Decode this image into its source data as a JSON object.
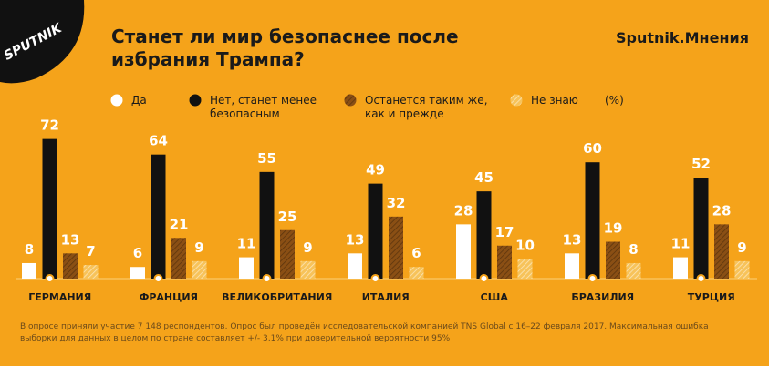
{
  "brand": "SPUTNIK",
  "chart_data": {
    "type": "bar",
    "title": "Станет ли мир безопаснее после избрания Трампа?",
    "source": "Sputnik.Мнения",
    "unit": "(%)",
    "categories": [
      "ГЕРМАНИЯ",
      "ФРАНЦИЯ",
      "ВЕЛИКОБРИТАНИЯ",
      "ИТАЛИЯ",
      "США",
      "БРАЗИЛИЯ",
      "ТУРЦИЯ"
    ],
    "series": [
      {
        "name": "Да",
        "color": "#ffffff",
        "values": [
          8,
          6,
          11,
          13,
          28,
          13,
          11
        ]
      },
      {
        "name": "Нет, станет менее безопасным",
        "color": "#111111",
        "values": [
          72,
          64,
          55,
          49,
          45,
          60,
          52
        ]
      },
      {
        "name": "Останется таким же, как и прежде",
        "color": "#8a4f14",
        "values": [
          13,
          21,
          25,
          32,
          17,
          19,
          28
        ]
      },
      {
        "name": "Не знаю",
        "color": "#f7c35a",
        "values": [
          7,
          9,
          9,
          6,
          10,
          8,
          9
        ]
      }
    ],
    "footnote": "В опросе приняли участие 7 148 респондентов. Опрос был проведён исследовательской компанией TNS Global с 16–22 февраля 2017. Максимальная ошибка выборки для данных в целом по стране составляет +/- 3,1% при доверительной вероятности 95%"
  }
}
